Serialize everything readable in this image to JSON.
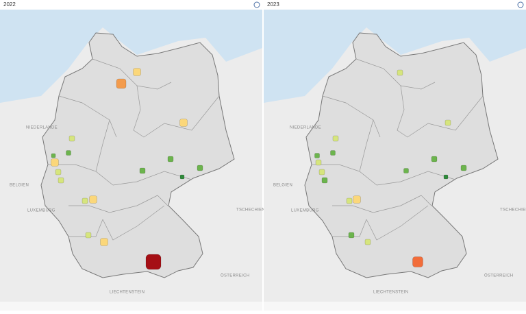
{
  "panels": [
    {
      "title": "2022"
    },
    {
      "title": "2023"
    }
  ],
  "map_labels": [
    "NIEDERLANDE",
    "BELGIEN",
    "LUXEMBURG",
    "TSCHECHIEN",
    "ÖSTERREICH",
    "LIECHTENSTEIN"
  ]
}
